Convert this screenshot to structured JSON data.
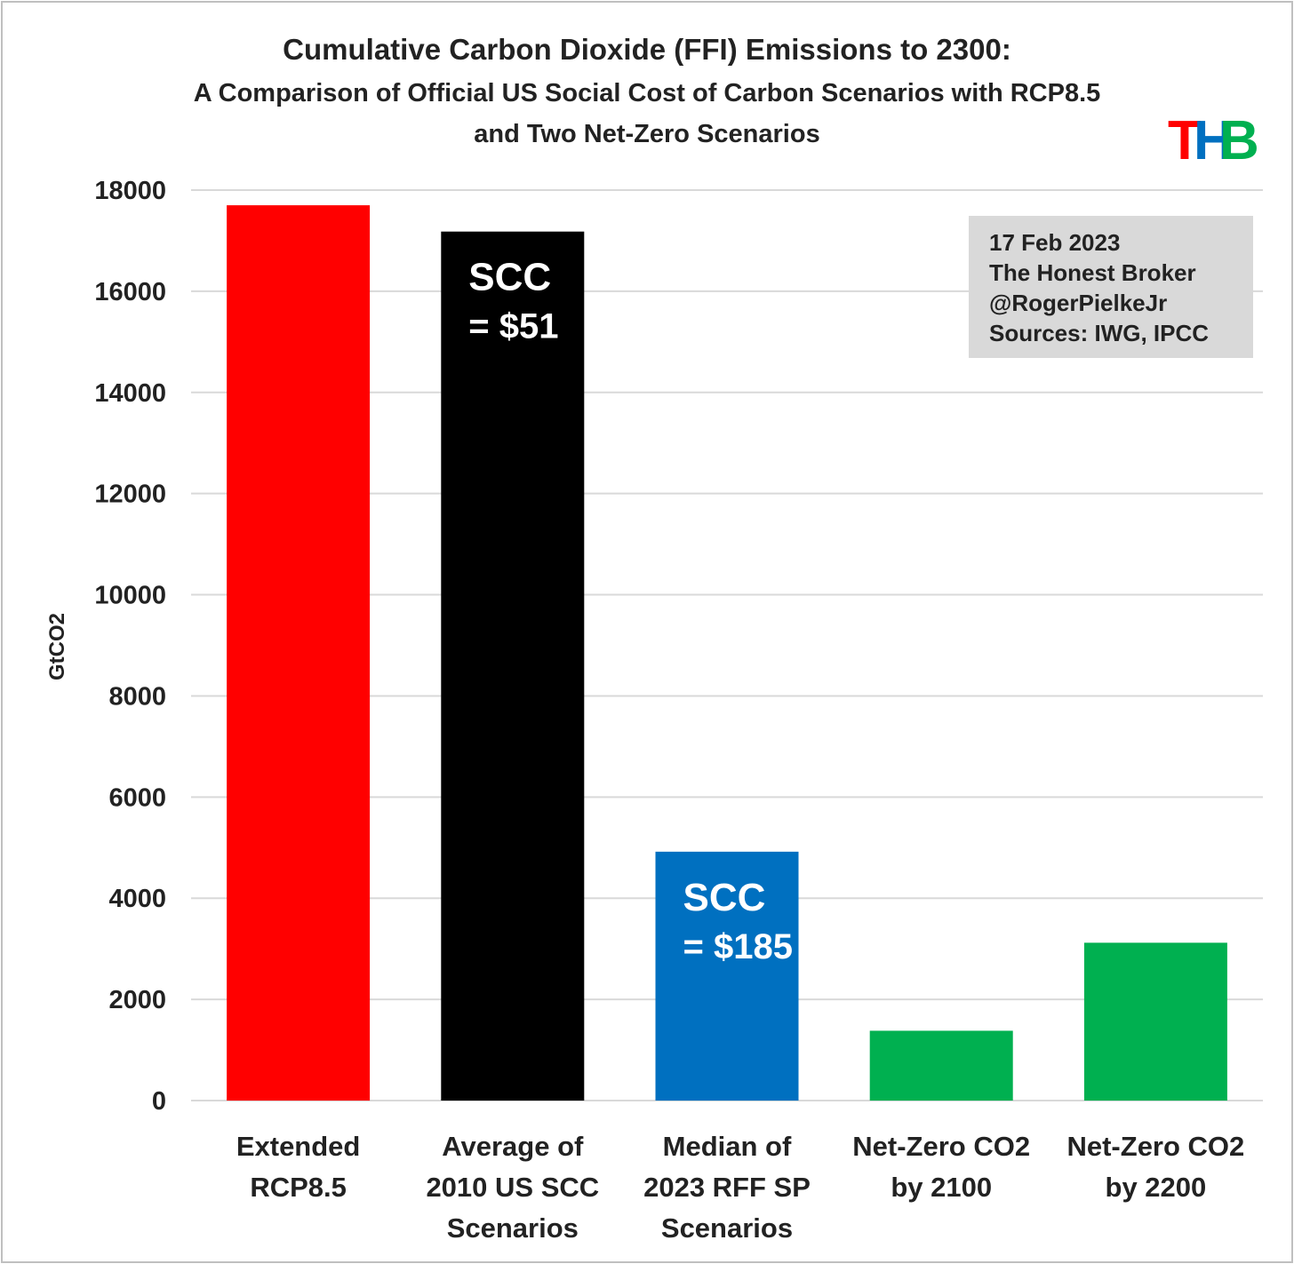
{
  "chart_data": {
    "type": "bar",
    "title": "Cumulative Carbon Dioxide (FFI) Emissions to 2300:",
    "subtitle_lines": [
      "A Comparison of Official US Social Cost of Carbon Scenarios with RCP8.5",
      "and Two Net-Zero Scenarios"
    ],
    "ylabel": "GtCO2",
    "xlabel": "",
    "ylim": [
      0,
      18000
    ],
    "yticks": [
      0,
      2000,
      4000,
      6000,
      8000,
      10000,
      12000,
      14000,
      16000,
      18000
    ],
    "grid": true,
    "categories": [
      [
        "Extended",
        "RCP8.5"
      ],
      [
        "Average of",
        "2010 US SCC",
        "Scenarios"
      ],
      [
        "Median of",
        "2023 RFF SP",
        "Scenarios"
      ],
      [
        "Net-Zero CO2",
        "by 2100"
      ],
      [
        "Net-Zero CO2",
        "by  2200"
      ]
    ],
    "values": [
      17700,
      17180,
      4920,
      1380,
      3120
    ],
    "colors": [
      "#ff0000",
      "#000000",
      "#0070c0",
      "#00b050",
      "#00b050"
    ],
    "bar_annotations": [
      null,
      [
        "SCC",
        "= $51"
      ],
      [
        "SCC",
        "= $185"
      ],
      null,
      null
    ]
  },
  "info_box": {
    "lines": [
      "17 Feb 2023",
      "The Honest Broker",
      "@RogerPielkeJr",
      "Sources: IWG, IPCC"
    ],
    "link_color": "#0070c0",
    "background": "#d9d9d9"
  },
  "logo": {
    "letters": [
      "T",
      "H",
      "B"
    ],
    "colors": [
      "#ff0000",
      "#0070c0",
      "#00b050"
    ]
  }
}
